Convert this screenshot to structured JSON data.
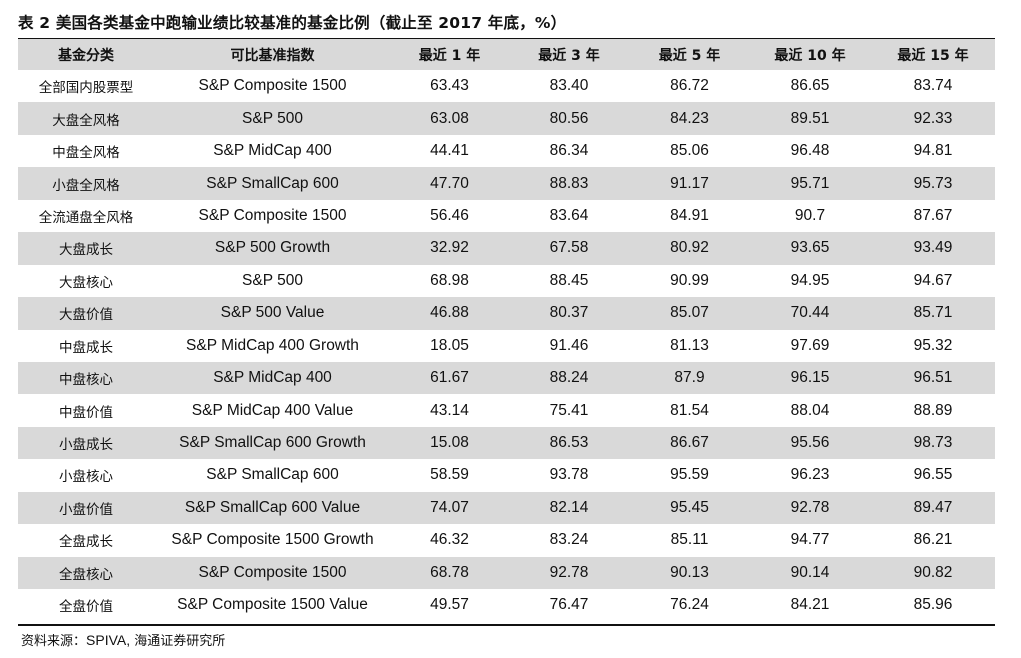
{
  "caption": "表 2 美国各类基金中跑输业绩比较基准的基金比例（截止至 2017 年底，%）",
  "table": {
    "headers": [
      "基金分类",
      "可比基准指数",
      "最近 1 年",
      "最近 3 年",
      "最近 5 年",
      "最近 10 年",
      "最近 15 年"
    ],
    "rows": [
      [
        "全部国内股票型",
        "S&P Composite 1500",
        "63.43",
        "83.40",
        "86.72",
        "86.65",
        "83.74"
      ],
      [
        "大盘全风格",
        "S&P 500",
        "63.08",
        "80.56",
        "84.23",
        "89.51",
        "92.33"
      ],
      [
        "中盘全风格",
        "S&P MidCap 400",
        "44.41",
        "86.34",
        "85.06",
        "96.48",
        "94.81"
      ],
      [
        "小盘全风格",
        "S&P SmallCap 600",
        "47.70",
        "88.83",
        "91.17",
        "95.71",
        "95.73"
      ],
      [
        "全流通盘全风格",
        "S&P Composite 1500",
        "56.46",
        "83.64",
        "84.91",
        "90.7",
        "87.67"
      ],
      [
        "大盘成长",
        "S&P 500 Growth",
        "32.92",
        "67.58",
        "80.92",
        "93.65",
        "93.49"
      ],
      [
        "大盘核心",
        "S&P 500",
        "68.98",
        "88.45",
        "90.99",
        "94.95",
        "94.67"
      ],
      [
        "大盘价值",
        "S&P 500 Value",
        "46.88",
        "80.37",
        "85.07",
        "70.44",
        "85.71"
      ],
      [
        "中盘成长",
        "S&P MidCap 400 Growth",
        "18.05",
        "91.46",
        "81.13",
        "97.69",
        "95.32"
      ],
      [
        "中盘核心",
        "S&P MidCap 400",
        "61.67",
        "88.24",
        "87.9",
        "96.15",
        "96.51"
      ],
      [
        "中盘价值",
        "S&P MidCap 400 Value",
        "43.14",
        "75.41",
        "81.54",
        "88.04",
        "88.89"
      ],
      [
        "小盘成长",
        "S&P SmallCap 600 Growth",
        "15.08",
        "86.53",
        "86.67",
        "95.56",
        "98.73"
      ],
      [
        "小盘核心",
        "S&P SmallCap 600",
        "58.59",
        "93.78",
        "95.59",
        "96.23",
        "96.55"
      ],
      [
        "小盘价值",
        "S&P SmallCap 600 Value",
        "74.07",
        "82.14",
        "95.45",
        "92.78",
        "89.47"
      ],
      [
        "全盘成长",
        "S&P Composite 1500 Growth",
        "46.32",
        "83.24",
        "85.11",
        "94.77",
        "86.21"
      ],
      [
        "全盘核心",
        "S&P Composite 1500",
        "68.78",
        "92.78",
        "90.13",
        "90.14",
        "90.82"
      ],
      [
        "全盘价值",
        "S&P Composite 1500 Value",
        "49.57",
        "76.47",
        "76.24",
        "84.21",
        "85.96"
      ]
    ]
  },
  "source": {
    "label": "资料来源：",
    "text_en": "SPIVA,",
    "text_cn": " 海通证券研究所"
  }
}
